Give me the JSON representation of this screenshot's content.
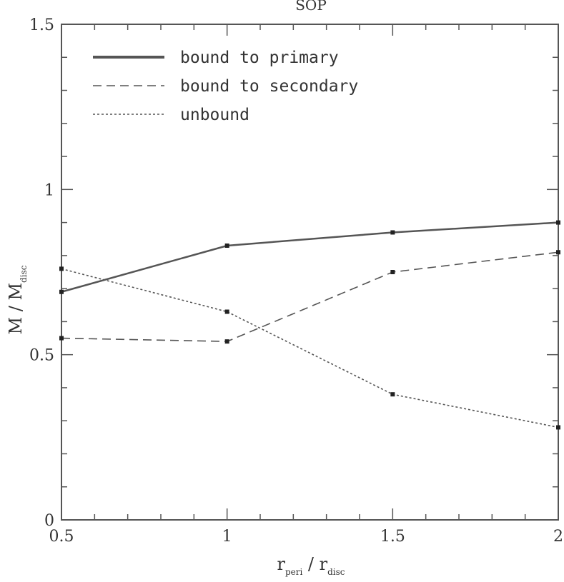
{
  "chart_data": {
    "type": "line",
    "title": "SOP",
    "xlabel": {
      "main": "r",
      "sub": "peri",
      "sep": " / ",
      "main2": "r",
      "sub2": "disc"
    },
    "ylabel": {
      "main": "M",
      "sep": " / ",
      "main2": "M",
      "sub2": "disc"
    },
    "xlim": [
      0.5,
      2
    ],
    "ylim": [
      0,
      1.5
    ],
    "xticks": [
      0.5,
      1,
      1.5,
      2
    ],
    "xtick_labels": [
      "0.5",
      "1",
      "1.5",
      "2"
    ],
    "yticks": [
      0,
      0.5,
      1,
      1.5
    ],
    "ytick_labels": [
      "0",
      "0.5",
      "1",
      "1.5"
    ],
    "x": [
      0.5,
      1,
      1.5,
      2
    ],
    "legend_position": "top-left",
    "series": [
      {
        "name": "bound to primary",
        "values": [
          0.69,
          0.83,
          0.87,
          0.9
        ],
        "style": "solid",
        "color": "#555555"
      },
      {
        "name": "bound to secondary",
        "values": [
          0.55,
          0.54,
          0.75,
          0.81
        ],
        "style": "dashed",
        "color": "#555555"
      },
      {
        "name": "unbound",
        "values": [
          0.76,
          0.63,
          0.38,
          0.28
        ],
        "style": "dotted",
        "color": "#555555"
      }
    ]
  }
}
